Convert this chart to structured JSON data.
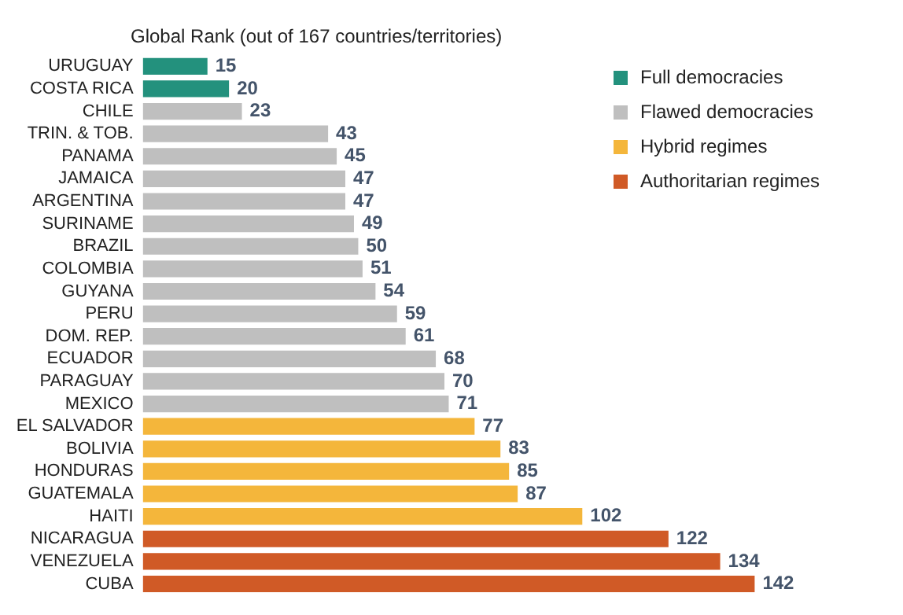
{
  "chart_data": {
    "type": "bar",
    "orientation": "horizontal",
    "title": "Global Rank (out of 167 countries/territories)",
    "categories": [
      "URUGUAY",
      "COSTA RICA",
      "CHILE",
      "TRIN. & TOB.",
      "PANAMA",
      "JAMAICA",
      "ARGENTINA",
      "SURINAME",
      "BRAZIL",
      "COLOMBIA",
      "GUYANA",
      "PERU",
      "DOM. REP.",
      "ECUADOR",
      "PARAGUAY",
      "MEXICO",
      "EL SALVADOR",
      "BOLIVIA",
      "HONDURAS",
      "GUATEMALA",
      "HAITI",
      "NICARAGUA",
      "VENEZUELA",
      "CUBA"
    ],
    "series": [
      {
        "name": "Full democracies",
        "color": "#23917d",
        "values": [
          15,
          20,
          null,
          null,
          null,
          null,
          null,
          null,
          null,
          null,
          null,
          null,
          null,
          null,
          null,
          null,
          null,
          null,
          null,
          null,
          null,
          null,
          null,
          null
        ]
      },
      {
        "name": "Flawed democracies",
        "color": "#bfbfbf",
        "values": [
          null,
          null,
          23,
          43,
          45,
          47,
          47,
          49,
          50,
          51,
          54,
          59,
          61,
          68,
          70,
          71,
          null,
          null,
          null,
          null,
          null,
          null,
          null,
          null
        ]
      },
      {
        "name": "Hybrid regimes",
        "color": "#f4b63b",
        "values": [
          null,
          null,
          null,
          null,
          null,
          null,
          null,
          null,
          null,
          null,
          null,
          null,
          null,
          null,
          null,
          null,
          77,
          83,
          85,
          87,
          102,
          null,
          null,
          null
        ]
      },
      {
        "name": "Authoritarian regimes",
        "color": "#d05a26",
        "values": [
          null,
          null,
          null,
          null,
          null,
          null,
          null,
          null,
          null,
          null,
          null,
          null,
          null,
          null,
          null,
          null,
          null,
          null,
          null,
          null,
          null,
          122,
          134,
          142
        ]
      }
    ],
    "data_labels": true,
    "grid": false,
    "legend": "top right",
    "tick_labels": "y"
  }
}
